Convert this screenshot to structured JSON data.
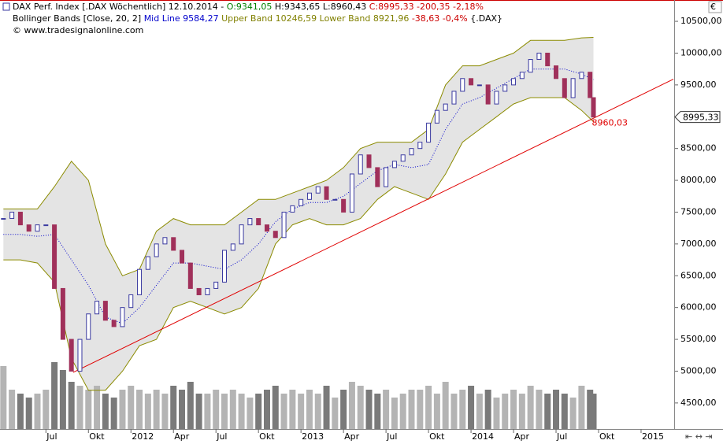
{
  "chart_data": {
    "type": "candlestick",
    "header_lines": [
      [
        {
          "text": "DAX Perf. Index [.DAX  Wöchentlich]  12.10.2014 - ",
          "color": "#000000"
        },
        {
          "text": "O:9341,05",
          "color": "#008000"
        },
        {
          "text": " H:9343,65 L:8960,43 ",
          "color": "#000000"
        },
        {
          "text": "C:8995,33 -200,35 -2,18%",
          "color": "#cc0000"
        }
      ],
      [
        {
          "text": "Bollinger Bands [Close, 20, 2] ",
          "color": "#000000"
        },
        {
          "text": "Mid Line 9584,27",
          "color": "#0000cc"
        },
        {
          "text": " Upper Band 10246,59 Lower Band 8921,96",
          "color": "#808000"
        },
        {
          "text": " -38,63 -0,4%",
          "color": "#cc0000"
        },
        {
          "text": " {.DAX}",
          "color": "#000000"
        }
      ],
      [
        {
          "text": "© www.tradesignalonline.com",
          "color": "#000000"
        }
      ]
    ],
    "currency": "€",
    "last_price_label": "8995,33",
    "annotation": "8960,03",
    "xlim": [
      2011.23,
      2015.19
    ],
    "ylim": [
      4090,
      10835
    ],
    "xticks": [
      {
        "value": 2011.5,
        "label": "Jul"
      },
      {
        "value": 2011.75,
        "label": "Okt"
      },
      2012,
      {
        "value": 2012.25,
        "label": "Apr"
      },
      {
        "value": 2012.5,
        "label": "Jul"
      },
      {
        "value": 2012.75,
        "label": "Okt"
      },
      2013,
      {
        "value": 2013.25,
        "label": "Apr"
      },
      {
        "value": 2013.5,
        "label": "Jul"
      },
      {
        "value": 2013.75,
        "label": "Okt"
      },
      2014,
      {
        "value": 2014.25,
        "label": "Apr"
      },
      {
        "value": 2014.5,
        "label": "Jul"
      },
      {
        "value": 2014.75,
        "label": "Okt"
      },
      2015
    ],
    "yticks": [
      {
        "value": 4500,
        "label": "4500,00"
      },
      {
        "value": 5000,
        "label": "5000,00"
      },
      {
        "value": 5500,
        "label": "5500,00"
      },
      {
        "value": 6000,
        "label": "6000,00"
      },
      {
        "value": 6500,
        "label": "6500,00"
      },
      {
        "value": 7000,
        "label": "7000,00"
      },
      {
        "value": 7500,
        "label": "7500,00"
      },
      {
        "value": 8000,
        "label": "8000,00"
      },
      {
        "value": 8500,
        "label": "8500,00"
      },
      {
        "value": 9000,
        "label": "9000,00"
      },
      {
        "value": 9500,
        "label": "9500,00"
      },
      {
        "value": 10000,
        "label": "10000,00"
      },
      {
        "value": 10500,
        "label": "10500,00"
      }
    ],
    "x": [
      2011.25,
      2011.3,
      2011.35,
      2011.4,
      2011.45,
      2011.5,
      2011.55,
      2011.6,
      2011.65,
      2011.7,
      2011.75,
      2011.8,
      2011.85,
      2011.9,
      2011.95,
      2012.0,
      2012.05,
      2012.1,
      2012.15,
      2012.2,
      2012.25,
      2012.3,
      2012.35,
      2012.4,
      2012.45,
      2012.5,
      2012.55,
      2012.6,
      2012.65,
      2012.7,
      2012.75,
      2012.8,
      2012.85,
      2012.9,
      2012.95,
      2013.0,
      2013.05,
      2013.1,
      2013.15,
      2013.2,
      2013.25,
      2013.3,
      2013.35,
      2013.4,
      2013.45,
      2013.5,
      2013.55,
      2013.6,
      2013.65,
      2013.7,
      2013.75,
      2013.8,
      2013.85,
      2013.9,
      2013.95,
      2014.0,
      2014.05,
      2014.1,
      2014.15,
      2014.2,
      2014.25,
      2014.3,
      2014.35,
      2014.4,
      2014.45,
      2014.5,
      2014.55,
      2014.6,
      2014.65,
      2014.7,
      2014.72
    ],
    "series": [
      {
        "color": "#3a3aa0",
        "down_color": "#a0305a",
        "values": [
          7400,
          7500,
          7300,
          7200,
          7300,
          7300,
          6300,
          5500,
          5000,
          5500,
          5900,
          6100,
          5800,
          5700,
          6000,
          6200,
          6600,
          6800,
          7000,
          7100,
          6900,
          6700,
          6300,
          6200,
          6300,
          6400,
          6900,
          7000,
          7300,
          7400,
          7300,
          7200,
          7100,
          7500,
          7600,
          7700,
          7800,
          7900,
          7700,
          7700,
          7500,
          8100,
          8400,
          8200,
          7900,
          8200,
          8300,
          8400,
          8500,
          8600,
          8900,
          9100,
          9200,
          9400,
          9600,
          9500,
          9500,
          9200,
          9400,
          9500,
          9600,
          9700,
          9900,
          10000,
          9800,
          9600,
          9300,
          9600,
          9700,
          9300,
          8995.33
        ]
      }
    ],
    "volume": {
      "color": "#b4b4b4",
      "down_color": "#7a7a7a",
      "lim": [
        0,
        100
      ],
      "values": [
        80,
        50,
        45,
        40,
        45,
        50,
        85,
        75,
        60,
        55,
        50,
        55,
        45,
        40,
        50,
        55,
        50,
        45,
        50,
        45,
        55,
        50,
        60,
        45,
        45,
        50,
        45,
        50,
        45,
        40,
        45,
        50,
        55,
        45,
        50,
        45,
        50,
        45,
        55,
        40,
        50,
        60,
        55,
        50,
        45,
        50,
        40,
        45,
        50,
        50,
        55,
        45,
        60,
        45,
        50,
        55,
        45,
        50,
        40,
        45,
        50,
        45,
        55,
        50,
        45,
        50,
        45,
        40,
        55,
        50,
        45
      ]
    },
    "bands": {
      "x": [
        2011.25,
        2011.35,
        2011.45,
        2011.55,
        2011.65,
        2011.75,
        2011.85,
        2011.95,
        2012.05,
        2012.15,
        2012.25,
        2012.35,
        2012.45,
        2012.55,
        2012.65,
        2012.75,
        2012.85,
        2012.95,
        2013.05,
        2013.15,
        2013.25,
        2013.35,
        2013.45,
        2013.55,
        2013.65,
        2013.75,
        2013.85,
        2013.95,
        2014.05,
        2014.15,
        2014.25,
        2014.35,
        2014.45,
        2014.55,
        2014.65,
        2014.72
      ],
      "fill": "#e4e4e4",
      "line_color": "#8b8b00",
      "mid_color": "#0000cc",
      "upper": [
        7550,
        7550,
        7550,
        7900,
        8300,
        8000,
        7000,
        6500,
        6600,
        7200,
        7400,
        7300,
        7300,
        7300,
        7500,
        7700,
        7700,
        7800,
        7900,
        8000,
        8200,
        8500,
        8600,
        8600,
        8600,
        8800,
        9500,
        9800,
        9800,
        9900,
        10000,
        10200,
        10200,
        10200,
        10240,
        10246.59
      ],
      "lower": [
        6750,
        6750,
        6700,
        6400,
        5200,
        4700,
        4700,
        5000,
        5400,
        5500,
        6000,
        6100,
        6000,
        5900,
        6000,
        6300,
        7000,
        7300,
        7400,
        7300,
        7300,
        7400,
        7700,
        7900,
        7800,
        7700,
        8100,
        8600,
        8800,
        9000,
        9200,
        9300,
        9300,
        9300,
        9100,
        8921.96
      ],
      "mid": [
        7150,
        7150,
        7120,
        7150,
        6750,
        6350,
        5850,
        5750,
        6000,
        6350,
        6700,
        6700,
        6650,
        6600,
        6750,
        7000,
        7350,
        7550,
        7650,
        7650,
        7750,
        7950,
        8150,
        8250,
        8200,
        8250,
        8800,
        9200,
        9300,
        9450,
        9600,
        9750,
        9750,
        9750,
        9670,
        9584.27
      ]
    },
    "trendline": {
      "color": "#e00000",
      "x": [
        2011.66,
        2015.19
      ],
      "y": [
        4980,
        9590
      ]
    }
  }
}
